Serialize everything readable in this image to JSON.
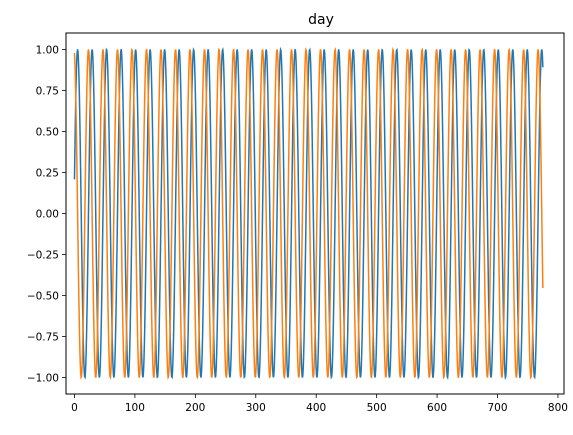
{
  "chart_data": {
    "type": "line",
    "title": "day",
    "xlabel": "",
    "ylabel": "",
    "xlim": [
      -14,
      810
    ],
    "ylim": [
      -1.1,
      1.1
    ],
    "x_ticks": [
      0,
      100,
      200,
      300,
      400,
      500,
      600,
      700,
      800
    ],
    "x_tick_labels": [
      "0",
      "100",
      "200",
      "300",
      "400",
      "500",
      "600",
      "700",
      "800"
    ],
    "y_ticks": [
      1.0,
      0.75,
      0.5,
      0.25,
      0.0,
      -0.25,
      -0.5,
      -0.75,
      -1.0
    ],
    "y_tick_labels": [
      "1.00",
      "0.75",
      "0.50",
      "0.25",
      "0.00",
      "−0.25",
      "−0.50",
      "−0.75",
      "−1.00"
    ],
    "grid": false,
    "legend": "none",
    "x_range": [
      0,
      775
    ],
    "period": 24,
    "series": [
      {
        "function": "sin",
        "phase_offset_x": 0.8,
        "color": "#1f77b4"
      },
      {
        "function": "cos",
        "phase_offset_x": 0.8,
        "color": "#ff7f0e"
      }
    ]
  }
}
